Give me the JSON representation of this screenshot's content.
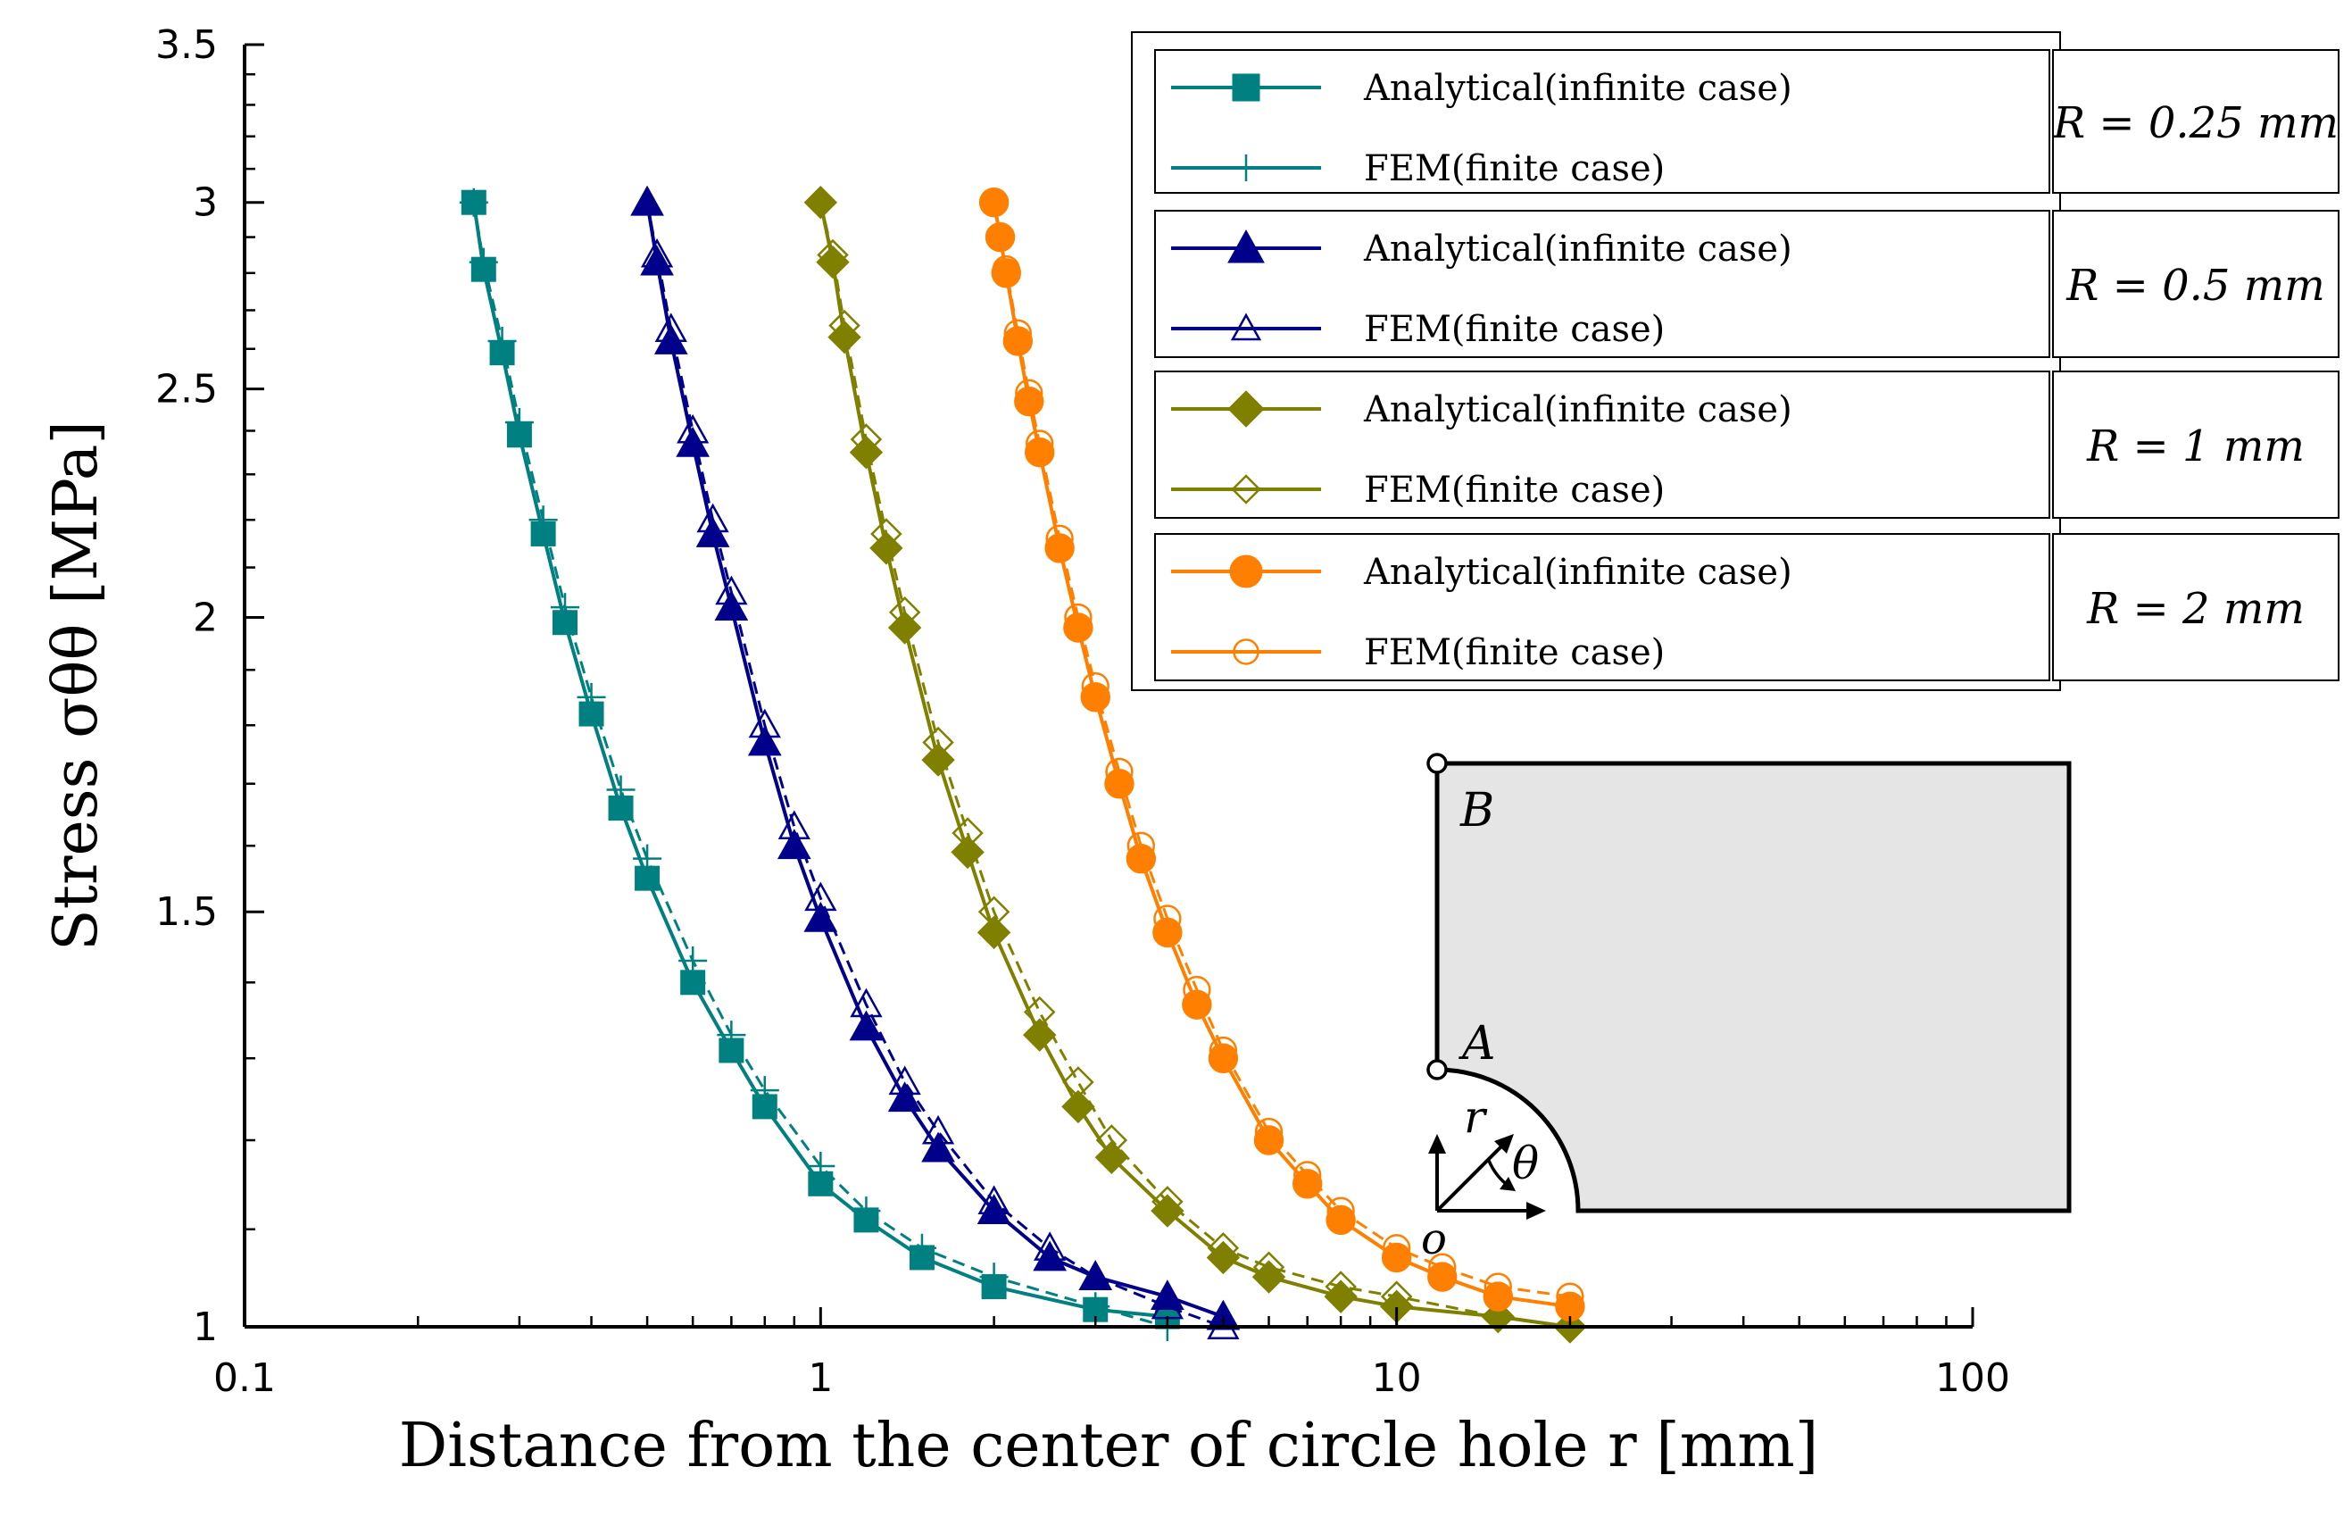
{
  "chart_data": {
    "type": "line",
    "xscale": "log",
    "yscale": "log",
    "xlim": [
      0.1,
      100
    ],
    "ylim": [
      1,
      3.5
    ],
    "x_ticks": [
      "0.1",
      "1",
      "10",
      "100"
    ],
    "y_ticks": [
      "1",
      "1.5",
      "2",
      "2.5",
      "3",
      "3.5"
    ],
    "xlabel": "Distance from the center of circle hole r [mm]",
    "ylabel": "Stress σθθ [MPa]",
    "legend_position": "top-right",
    "groups": [
      {
        "label": "R = 0.25 mm",
        "R": 0.25,
        "color": "#008080",
        "series": [
          {
            "name": "Analytical (infinite case)",
            "marker": "square-filled",
            "x": [
              0.25,
              0.26,
              0.28,
              0.3,
              0.33,
              0.36,
              0.4,
              0.45,
              0.5,
              0.6,
              0.7,
              0.8,
              1.0,
              1.2,
              1.5,
              2.0,
              3.0,
              4.0
            ],
            "y": [
              3.0,
              2.81,
              2.59,
              2.39,
              2.17,
              1.99,
              1.82,
              1.66,
              1.55,
              1.4,
              1.31,
              1.24,
              1.15,
              1.11,
              1.07,
              1.04,
              1.017,
              1.01
            ]
          },
          {
            "name": "FEM (finite case)",
            "marker": "plus",
            "x": [
              0.25,
              0.26,
              0.28,
              0.3,
              0.33,
              0.36,
              0.4,
              0.45,
              0.5,
              0.6,
              0.7,
              0.8,
              1.0,
              1.2,
              1.5,
              2.0,
              3.0,
              4.0
            ],
            "y": [
              3.0,
              2.83,
              2.62,
              2.42,
              2.2,
              2.02,
              1.85,
              1.69,
              1.58,
              1.43,
              1.33,
              1.26,
              1.17,
              1.12,
              1.08,
              1.05,
              1.02,
              1.0
            ]
          }
        ]
      },
      {
        "label": "R = 0.5 mm",
        "R": 0.5,
        "color": "#00008b",
        "series": [
          {
            "name": "Analytical (infinite case)",
            "marker": "triangle-filled",
            "x": [
              0.5,
              0.52,
              0.55,
              0.6,
              0.65,
              0.7,
              0.8,
              0.9,
              1.0,
              1.2,
              1.4,
              1.6,
              2.0,
              2.5,
              3.0,
              4.0,
              5.0
            ],
            "y": [
              3.0,
              2.83,
              2.62,
              2.37,
              2.17,
              2.02,
              1.77,
              1.6,
              1.49,
              1.34,
              1.25,
              1.19,
              1.12,
              1.07,
              1.05,
              1.03,
              1.01
            ]
          },
          {
            "name": "FEM (finite case)",
            "marker": "triangle-open",
            "x": [
              0.5,
              0.52,
              0.55,
              0.6,
              0.65,
              0.7,
              0.8,
              0.9,
              1.0,
              1.2,
              1.4,
              1.6,
              2.0,
              2.5,
              3.0,
              4.0,
              5.0
            ],
            "y": [
              3.0,
              2.85,
              2.65,
              2.4,
              2.2,
              2.05,
              1.8,
              1.63,
              1.52,
              1.37,
              1.27,
              1.21,
              1.13,
              1.08,
              1.05,
              1.02,
              1.0
            ]
          }
        ]
      },
      {
        "label": "R = 1 mm",
        "R": 1,
        "color": "#808000",
        "series": [
          {
            "name": "Analytical (infinite case)",
            "marker": "diamond-filled",
            "x": [
              1.0,
              1.05,
              1.1,
              1.2,
              1.3,
              1.4,
              1.6,
              1.8,
              2.0,
              2.4,
              2.8,
              3.2,
              4.0,
              5.0,
              6.0,
              8.0,
              10.0,
              15.0,
              20.0
            ],
            "y": [
              3.0,
              2.83,
              2.63,
              2.35,
              2.14,
              1.98,
              1.74,
              1.59,
              1.47,
              1.33,
              1.24,
              1.18,
              1.12,
              1.07,
              1.05,
              1.03,
              1.02,
              1.01,
              1.0
            ]
          },
          {
            "name": "FEM (finite case)",
            "marker": "diamond-open",
            "x": [
              1.0,
              1.05,
              1.1,
              1.2,
              1.3,
              1.4,
              1.6,
              1.8,
              2.0,
              2.4,
              2.8,
              3.2,
              4.0,
              5.0,
              6.0,
              8.0,
              10.0,
              15.0,
              20.0
            ],
            "y": [
              3.0,
              2.85,
              2.66,
              2.38,
              2.17,
              2.01,
              1.77,
              1.62,
              1.5,
              1.36,
              1.27,
              1.2,
              1.13,
              1.08,
              1.06,
              1.04,
              1.03,
              1.01,
              1.0
            ]
          }
        ]
      },
      {
        "label": "R = 2 mm",
        "R": 2,
        "color": "#ff8000",
        "series": [
          {
            "name": "Analytical (infinite case)",
            "marker": "circle-filled",
            "x": [
              2.0,
              2.05,
              2.1,
              2.2,
              2.3,
              2.4,
              2.6,
              2.8,
              3.0,
              3.3,
              3.6,
              4.0,
              4.5,
              5.0,
              6.0,
              7.0,
              8.0,
              10.0,
              12.0,
              15.0,
              20.0
            ],
            "y": [
              3.0,
              2.9,
              2.8,
              2.62,
              2.47,
              2.35,
              2.14,
              1.98,
              1.85,
              1.7,
              1.58,
              1.47,
              1.37,
              1.3,
              1.2,
              1.15,
              1.11,
              1.07,
              1.05,
              1.03,
              1.02
            ]
          },
          {
            "name": "FEM (finite case)",
            "marker": "circle-open",
            "x": [
              2.0,
              2.05,
              2.1,
              2.2,
              2.3,
              2.4,
              2.6,
              2.8,
              3.0,
              3.3,
              3.6,
              4.0,
              4.5,
              5.0,
              6.0,
              7.0,
              8.0,
              10.0,
              12.0,
              15.0,
              20.0
            ],
            "y": [
              3.0,
              2.9,
              2.81,
              2.64,
              2.49,
              2.37,
              2.16,
              2.0,
              1.87,
              1.72,
              1.6,
              1.49,
              1.39,
              1.31,
              1.21,
              1.16,
              1.12,
              1.08,
              1.06,
              1.04,
              1.03
            ]
          }
        ]
      }
    ]
  },
  "legend": {
    "entries": [
      {
        "name": "Analytical(infinite case)",
        "marker": "square-filled",
        "color": "#008080"
      },
      {
        "name": "FEM(finite case)",
        "marker": "plus",
        "color": "#008080"
      },
      {
        "name": "Analytical(infinite case)",
        "marker": "triangle-filled",
        "color": "#00008b"
      },
      {
        "name": "FEM(finite case)",
        "marker": "triangle-open",
        "color": "#00008b"
      },
      {
        "name": "Analytical(infinite case)",
        "marker": "diamond-filled",
        "color": "#808000"
      },
      {
        "name": "FEM(finite case)",
        "marker": "diamond-open",
        "color": "#808000"
      },
      {
        "name": "Analytical(infinite case)",
        "marker": "circle-filled",
        "color": "#ff8000"
      },
      {
        "name": "FEM(finite case)",
        "marker": "circle-open",
        "color": "#ff8000"
      }
    ],
    "group_labels": [
      "R = 0.25 mm",
      "R = 0.5 mm",
      "R = 1 mm",
      "R = 2 mm"
    ]
  },
  "inset": {
    "point_a": "A",
    "point_b": "B",
    "origin": "o",
    "r_symbol": "r",
    "theta_symbol": "θ"
  }
}
